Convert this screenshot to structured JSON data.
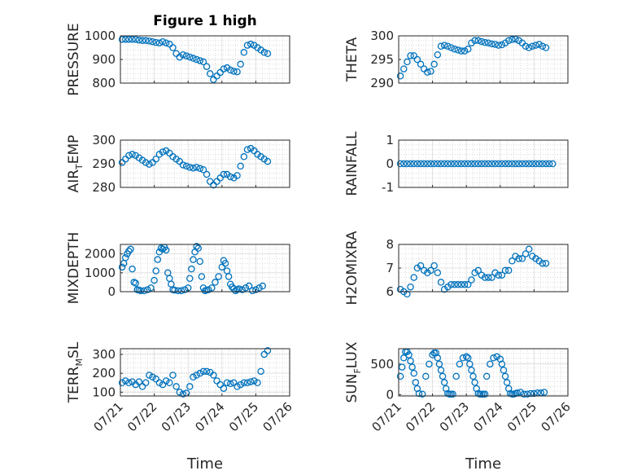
{
  "title": "Figure 1 high",
  "xlabel": "Time",
  "x_ticks": [
    "07/21",
    "07/22",
    "07/23",
    "07/24",
    "07/25",
    "07/26"
  ],
  "marker_color": "#0072BD",
  "chart_data": [
    {
      "type": "scatter",
      "ylabel": "PRESSURE",
      "ylim": [
        800,
        1000
      ],
      "yticks": [
        "800",
        "900",
        "1000"
      ],
      "grid": true,
      "minor_grid": true,
      "x": [
        0.05,
        0.15,
        0.25,
        0.35,
        0.45,
        0.55,
        0.65,
        0.75,
        0.85,
        0.95,
        1.05,
        1.15,
        1.25,
        1.35,
        1.45,
        1.55,
        1.65,
        1.75,
        1.85,
        1.95,
        2.05,
        2.15,
        2.25,
        2.35,
        2.45,
        2.55,
        2.65,
        2.75,
        2.85,
        2.95,
        3.05,
        3.15,
        3.25,
        3.35,
        3.45,
        3.55,
        3.65,
        3.75,
        3.85,
        3.95,
        4.05,
        4.15,
        4.25,
        4.35
      ],
      "y": [
        985,
        985,
        985,
        985,
        985,
        982,
        980,
        980,
        978,
        975,
        972,
        970,
        975,
        970,
        965,
        950,
        925,
        910,
        920,
        915,
        910,
        905,
        900,
        895,
        890,
        870,
        840,
        815,
        830,
        845,
        860,
        865,
        855,
        850,
        848,
        880,
        930,
        960,
        965,
        960,
        950,
        940,
        930,
        925
      ]
    },
    {
      "type": "scatter",
      "ylabel": "THETA",
      "ylim": [
        290,
        300
      ],
      "yticks": [
        "290",
        "295",
        "300"
      ],
      "grid": true,
      "minor_grid": true,
      "x": [
        0.05,
        0.15,
        0.25,
        0.35,
        0.45,
        0.55,
        0.65,
        0.75,
        0.85,
        0.95,
        1.05,
        1.15,
        1.25,
        1.35,
        1.45,
        1.55,
        1.65,
        1.75,
        1.85,
        1.95,
        2.05,
        2.15,
        2.25,
        2.35,
        2.45,
        2.55,
        2.65,
        2.75,
        2.85,
        2.95,
        3.05,
        3.15,
        3.25,
        3.35,
        3.45,
        3.55,
        3.65,
        3.75,
        3.85,
        3.95,
        4.05,
        4.15,
        4.25,
        4.35
      ],
      "y": [
        291.5,
        293,
        294.5,
        295.8,
        295.8,
        295,
        294,
        293,
        292.3,
        292.5,
        294,
        296,
        297.8,
        298,
        297.8,
        297.5,
        297.2,
        297,
        296.8,
        296.8,
        297.2,
        298.5,
        299,
        299,
        298.8,
        298.6,
        298.5,
        298.3,
        298.2,
        298,
        298.1,
        298.5,
        299,
        299.2,
        299.3,
        299,
        298.5,
        297.8,
        297.5,
        297.8,
        298,
        298.2,
        297.8,
        297.5
      ]
    },
    {
      "type": "scatter",
      "ylabel": "AIR_TEMP",
      "ylim": [
        280,
        300
      ],
      "yticks": [
        "280",
        "290",
        "300"
      ],
      "grid": true,
      "minor_grid": true,
      "x": [
        0.05,
        0.15,
        0.25,
        0.35,
        0.45,
        0.55,
        0.65,
        0.75,
        0.85,
        0.95,
        1.05,
        1.15,
        1.25,
        1.35,
        1.45,
        1.55,
        1.65,
        1.75,
        1.85,
        1.95,
        2.05,
        2.15,
        2.25,
        2.35,
        2.45,
        2.55,
        2.65,
        2.75,
        2.85,
        2.95,
        3.05,
        3.15,
        3.25,
        3.35,
        3.45,
        3.55,
        3.65,
        3.75,
        3.85,
        3.95,
        4.05,
        4.15,
        4.25,
        4.35
      ],
      "y": [
        290.5,
        292,
        293.5,
        294,
        293.5,
        292.5,
        291.5,
        290.5,
        289.8,
        290.5,
        292,
        294,
        295,
        295.5,
        294.5,
        293,
        292,
        291,
        289.5,
        289,
        288.5,
        288.2,
        288.5,
        288,
        287.5,
        285.5,
        282.5,
        281,
        282.5,
        284,
        285.5,
        285.5,
        284.5,
        284,
        285,
        289,
        293,
        296,
        296.5,
        295.5,
        294,
        293,
        292,
        291
      ]
    },
    {
      "type": "scatter",
      "ylabel": "RAINFALL",
      "ylim": [
        -1,
        1
      ],
      "yticks": [
        "-1",
        "0",
        "1"
      ],
      "grid": true,
      "minor_grid": true,
      "x": [
        0.05,
        0.15,
        0.25,
        0.35,
        0.45,
        0.55,
        0.65,
        0.75,
        0.85,
        0.95,
        1.05,
        1.15,
        1.25,
        1.35,
        1.45,
        1.55,
        1.65,
        1.75,
        1.85,
        1.95,
        2.05,
        2.15,
        2.25,
        2.35,
        2.45,
        2.55,
        2.65,
        2.75,
        2.85,
        2.95,
        3.05,
        3.15,
        3.25,
        3.35,
        3.45,
        3.55,
        3.65,
        3.75,
        3.85,
        3.95,
        4.05,
        4.15,
        4.25,
        4.35,
        4.45,
        4.55
      ],
      "y": [
        0,
        0,
        0,
        0,
        0,
        0,
        0,
        0,
        0,
        0,
        0,
        0,
        0,
        0,
        0,
        0,
        0,
        0,
        0,
        0,
        0,
        0,
        0,
        0,
        0,
        0,
        0,
        0,
        0,
        0,
        0,
        0,
        0,
        0,
        0,
        0,
        0,
        0,
        0,
        0,
        0,
        0,
        0,
        0,
        0,
        0
      ]
    },
    {
      "type": "scatter",
      "ylabel": "MIXDEPTH",
      "ylim": [
        0,
        2500
      ],
      "yticks": [
        "0",
        "1000",
        "2000"
      ],
      "grid": true,
      "minor_grid": true,
      "x": [
        0.05,
        0.1,
        0.15,
        0.2,
        0.25,
        0.3,
        0.35,
        0.4,
        0.45,
        0.5,
        0.55,
        0.6,
        0.7,
        0.8,
        0.9,
        1.0,
        1.05,
        1.1,
        1.15,
        1.2,
        1.25,
        1.3,
        1.35,
        1.4,
        1.45,
        1.5,
        1.55,
        1.6,
        1.7,
        1.8,
        1.9,
        2.0,
        2.05,
        2.1,
        2.15,
        2.2,
        2.25,
        2.3,
        2.35,
        2.4,
        2.45,
        2.5,
        2.55,
        2.6,
        2.7,
        2.8,
        2.9,
        3.0,
        3.05,
        3.1,
        3.15,
        3.2,
        3.25,
        3.3,
        3.35,
        3.4,
        3.45,
        3.5,
        3.6,
        3.7,
        3.8,
        3.9,
        4.0,
        4.1,
        4.2
      ],
      "y": [
        1300,
        1500,
        1800,
        2000,
        2150,
        2250,
        1200,
        500,
        450,
        100,
        80,
        50,
        50,
        100,
        200,
        600,
        1100,
        1700,
        2100,
        2300,
        2250,
        2350,
        2200,
        1000,
        700,
        400,
        100,
        80,
        50,
        50,
        100,
        200,
        700,
        1200,
        1700,
        2100,
        2400,
        2300,
        1600,
        800,
        200,
        50,
        80,
        100,
        200,
        500,
        800,
        1300,
        1650,
        1500,
        1100,
        800,
        400,
        250,
        150,
        50,
        100,
        150,
        100,
        200,
        300,
        50,
        100,
        200,
        300
      ]
    },
    {
      "type": "scatter",
      "ylabel": "H2OMIXRA",
      "ylim": [
        6,
        8
      ],
      "yticks": [
        "6",
        "7",
        "8"
      ],
      "grid": true,
      "minor_grid": true,
      "x": [
        0.05,
        0.15,
        0.25,
        0.35,
        0.45,
        0.55,
        0.65,
        0.75,
        0.85,
        0.95,
        1.05,
        1.15,
        1.25,
        1.35,
        1.45,
        1.55,
        1.65,
        1.75,
        1.85,
        1.95,
        2.05,
        2.15,
        2.25,
        2.35,
        2.45,
        2.55,
        2.65,
        2.75,
        2.85,
        2.95,
        3.05,
        3.15,
        3.25,
        3.35,
        3.45,
        3.55,
        3.65,
        3.75,
        3.85,
        3.95,
        4.05,
        4.15,
        4.25,
        4.35
      ],
      "y": [
        6.1,
        6.0,
        5.9,
        6.2,
        6.6,
        7.0,
        7.1,
        6.9,
        6.8,
        6.9,
        7.1,
        6.8,
        6.4,
        6.1,
        6.2,
        6.3,
        6.3,
        6.3,
        6.3,
        6.3,
        6.3,
        6.5,
        6.8,
        6.9,
        6.7,
        6.6,
        6.6,
        6.6,
        6.8,
        6.7,
        6.7,
        6.9,
        6.9,
        7.3,
        7.5,
        7.4,
        7.4,
        7.6,
        7.8,
        7.5,
        7.4,
        7.3,
        7.2,
        7.2
      ]
    },
    {
      "type": "scatter",
      "ylabel": "TERR_MSL",
      "ylim": [
        80,
        330
      ],
      "yticks": [
        "100",
        "200",
        "300"
      ],
      "grid": true,
      "minor_grid": true,
      "x": [
        0.05,
        0.15,
        0.25,
        0.35,
        0.45,
        0.55,
        0.65,
        0.75,
        0.85,
        0.95,
        1.05,
        1.15,
        1.25,
        1.35,
        1.45,
        1.55,
        1.65,
        1.75,
        1.85,
        1.95,
        2.05,
        2.15,
        2.25,
        2.35,
        2.45,
        2.55,
        2.65,
        2.75,
        2.85,
        2.95,
        3.05,
        3.15,
        3.25,
        3.35,
        3.45,
        3.55,
        3.65,
        3.75,
        3.85,
        3.95,
        4.05,
        4.15,
        4.25,
        4.35
      ],
      "y": [
        150,
        160,
        150,
        155,
        140,
        155,
        130,
        150,
        190,
        180,
        170,
        150,
        140,
        160,
        150,
        190,
        130,
        100,
        90,
        95,
        130,
        180,
        190,
        200,
        210,
        210,
        205,
        190,
        160,
        140,
        120,
        150,
        145,
        150,
        130,
        140,
        150,
        150,
        155,
        160,
        150,
        210,
        300,
        320
      ]
    },
    {
      "type": "scatter",
      "ylabel": "SUN_FLUX",
      "ylim": [
        -20,
        750
      ],
      "yticks": [
        "0",
        "500"
      ],
      "grid": true,
      "minor_grid": true,
      "x": [
        0.05,
        0.1,
        0.15,
        0.2,
        0.25,
        0.3,
        0.35,
        0.4,
        0.45,
        0.5,
        0.55,
        0.6,
        0.7,
        0.8,
        0.9,
        1.0,
        1.05,
        1.1,
        1.15,
        1.2,
        1.25,
        1.3,
        1.35,
        1.4,
        1.45,
        1.5,
        1.55,
        1.6,
        1.7,
        1.8,
        1.9,
        2.0,
        2.05,
        2.1,
        2.15,
        2.2,
        2.25,
        2.3,
        2.35,
        2.4,
        2.45,
        2.5,
        2.55,
        2.6,
        2.7,
        2.8,
        2.9,
        3.0,
        3.05,
        3.1,
        3.15,
        3.2,
        3.25,
        3.3,
        3.35,
        3.4,
        3.45,
        3.5,
        3.6,
        3.7,
        3.8,
        3.9,
        4.0,
        4.1,
        4.2,
        4.3
      ],
      "y": [
        300,
        450,
        600,
        700,
        700,
        650,
        550,
        450,
        350,
        200,
        100,
        20,
        10,
        300,
        500,
        650,
        680,
        680,
        600,
        500,
        400,
        300,
        200,
        100,
        20,
        10,
        10,
        10,
        300,
        500,
        600,
        620,
        600,
        500,
        400,
        300,
        200,
        100,
        20,
        10,
        10,
        10,
        10,
        300,
        500,
        600,
        620,
        580,
        500,
        400,
        300,
        200,
        100,
        20,
        10,
        10,
        20,
        30,
        40,
        10,
        10,
        20,
        20,
        30,
        30,
        40
      ]
    }
  ]
}
